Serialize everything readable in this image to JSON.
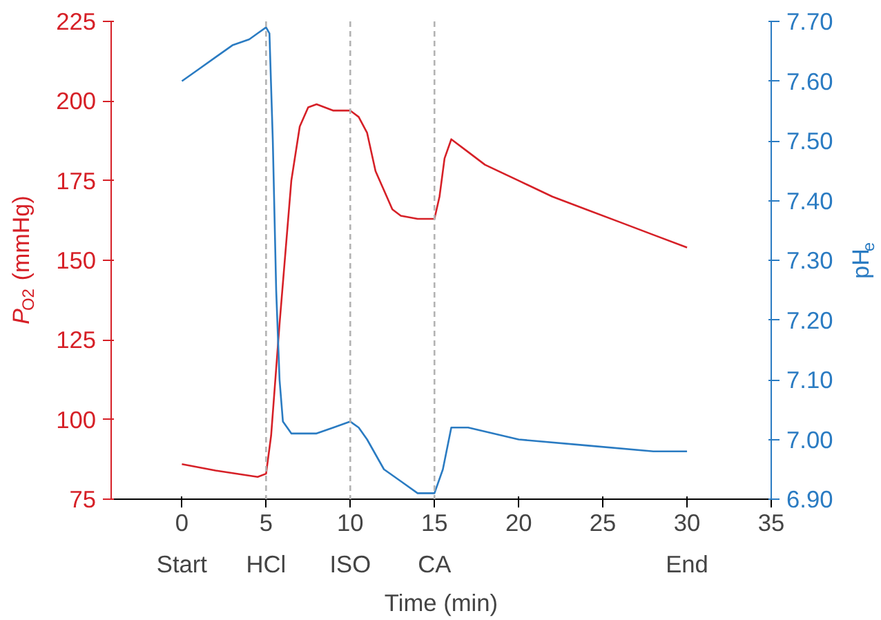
{
  "chart_data": {
    "type": "line",
    "xlabel": "Time (min)",
    "ylabel": "P$_{O2}$ (mmHg)",
    "y2label": "pH$_{e}$",
    "xlim": [
      -4.2,
      35
    ],
    "xticks": [
      0,
      5,
      10,
      15,
      20,
      25,
      30,
      35
    ],
    "ylim": [
      75,
      225
    ],
    "yticks": [
      75,
      100,
      125,
      150,
      175,
      200,
      225
    ],
    "y2lim": [
      6.9,
      7.7
    ],
    "y2ticks": [
      {
        "value": 6.9,
        "label": "6.90"
      },
      {
        "value": 7.0,
        "label": "7.00"
      },
      {
        "value": 7.1,
        "label": "7.10"
      },
      {
        "value": 7.2,
        "label": "7.20"
      },
      {
        "value": 7.3,
        "label": "7.30"
      },
      {
        "value": 7.4,
        "label": "7.40"
      },
      {
        "value": 7.5,
        "label": "7.50"
      },
      {
        "value": 7.6,
        "label": "7.60"
      },
      {
        "value": 7.7,
        "label": "7.70"
      }
    ],
    "grid": false,
    "series": [
      {
        "color": "#d62027",
        "x": [
          0,
          2,
          4.5,
          5,
          5.3,
          5.8,
          6.5,
          7,
          7.5,
          8,
          9,
          10,
          10.5,
          11,
          11.5,
          12,
          12.5,
          13,
          14,
          15,
          15.3,
          15.6,
          16,
          17,
          18,
          20,
          22,
          24,
          26,
          28,
          30
        ],
        "values": [
          86,
          84,
          82,
          83,
          95,
          130,
          175,
          192,
          198,
          199,
          197,
          197,
          195,
          190,
          178,
          172,
          166,
          164,
          163,
          163,
          170,
          182,
          188,
          184,
          180,
          175,
          170,
          166,
          162,
          158,
          154
        ]
      },
      {
        "color": "#2a7bc2",
        "axis": "y2",
        "x": [
          0,
          1,
          2,
          3,
          4,
          4.5,
          5,
          5.2,
          5.4,
          5.6,
          5.8,
          6,
          6.5,
          7,
          8,
          9,
          10,
          10.5,
          11,
          12,
          13,
          14,
          15,
          15.5,
          16,
          17,
          20,
          24,
          28,
          30
        ],
        "values": [
          7.6,
          7.62,
          7.64,
          7.66,
          7.67,
          7.68,
          7.69,
          7.68,
          7.5,
          7.25,
          7.1,
          7.03,
          7.01,
          7.01,
          7.01,
          7.02,
          7.03,
          7.02,
          7.0,
          6.95,
          6.93,
          6.91,
          6.91,
          6.95,
          7.02,
          7.02,
          7.0,
          6.99,
          6.98,
          6.98
        ]
      }
    ],
    "ref_lines": [
      {
        "axis": "x",
        "value": 5,
        "label": "HCl",
        "color": "#b3b3b3",
        "line_style": "dashed"
      },
      {
        "axis": "x",
        "value": 10,
        "label": "ISO",
        "color": "#b3b3b3",
        "line_style": "dashed"
      },
      {
        "axis": "x",
        "value": 15,
        "label": "CA",
        "color": "#b3b3b3",
        "line_style": "dashed"
      }
    ],
    "annotations": [
      "Start",
      "End"
    ]
  }
}
